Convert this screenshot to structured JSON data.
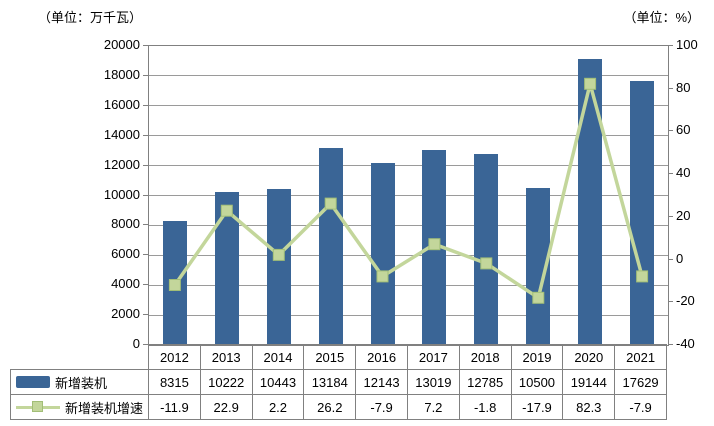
{
  "units": {
    "left": "（单位：万千瓦）",
    "right": "（单位：%）"
  },
  "colors": {
    "bar": "#3a6596",
    "line": "#c3d69b",
    "marker_fill": "#c3d69b",
    "marker_border": "#a2be77",
    "grid": "#9a9a9a",
    "axis": "#808080",
    "text": "#000000"
  },
  "chart_data": {
    "type": "combo-bar-line",
    "title": "",
    "categories": [
      "2012",
      "2013",
      "2014",
      "2015",
      "2016",
      "2017",
      "2018",
      "2019",
      "2020",
      "2021"
    ],
    "series": [
      {
        "name": "新增装机",
        "type": "bar",
        "axis": "left",
        "values": [
          8315,
          10222,
          10443,
          13184,
          12143,
          13019,
          12785,
          10500,
          19144,
          17629
        ]
      },
      {
        "name": "新增装机增速",
        "type": "line",
        "axis": "right",
        "values": [
          -11.9,
          22.9,
          2.2,
          26.2,
          -7.9,
          7.2,
          -1.8,
          -17.9,
          82.3,
          -7.9
        ]
      }
    ],
    "left_axis": {
      "min": 0,
      "max": 20000,
      "step": 2000,
      "tick_labels": [
        "20000",
        "18000",
        "16000",
        "14000",
        "12000",
        "10000",
        "8000",
        "6000",
        "4000",
        "2000",
        "0"
      ]
    },
    "right_axis": {
      "min": -40,
      "max": 100,
      "step": 20,
      "tick_labels": [
        "100",
        "80",
        "60",
        "40",
        "20",
        "0",
        "-20",
        "-40"
      ]
    },
    "grid": true,
    "legend_position": "table-left"
  }
}
